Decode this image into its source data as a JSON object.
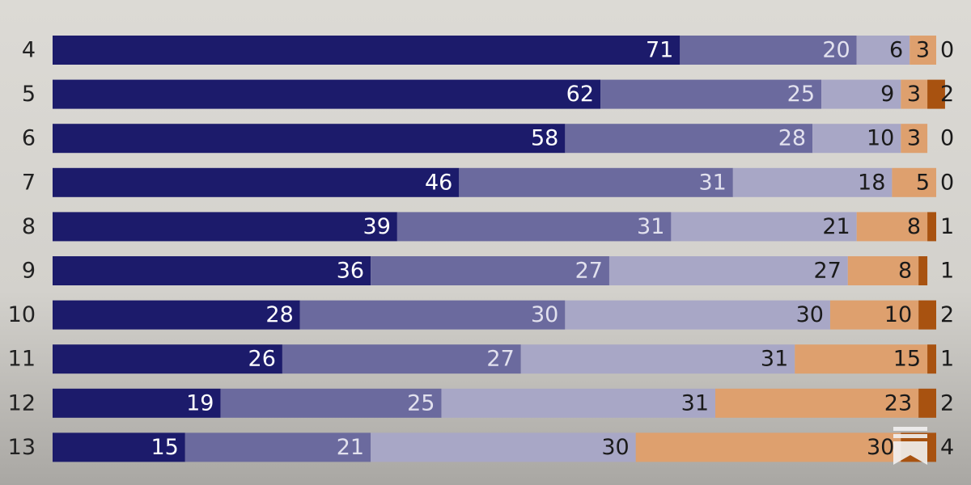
{
  "chart_data": {
    "type": "stacked-barh",
    "categories": [
      "4",
      "5",
      "6",
      "7",
      "8",
      "9",
      "10",
      "11",
      "12",
      "13"
    ],
    "series": [
      {
        "color": "#1c1b6b",
        "values": [
          71,
          62,
          58,
          46,
          39,
          36,
          28,
          26,
          19,
          15
        ]
      },
      {
        "color": "#6b6a9e",
        "values": [
          20,
          25,
          28,
          31,
          31,
          27,
          30,
          27,
          25,
          21
        ]
      },
      {
        "color": "#a8a7c6",
        "values": [
          6,
          9,
          10,
          18,
          21,
          27,
          30,
          31,
          31,
          30
        ]
      },
      {
        "color": "#dea06e",
        "values": [
          3,
          3,
          3,
          5,
          8,
          8,
          10,
          15,
          23,
          30
        ]
      },
      {
        "color": "#a85210",
        "values": [
          0,
          2,
          0,
          0,
          1,
          1,
          2,
          1,
          2,
          4
        ]
      }
    ],
    "xlim": [
      0,
      100
    ]
  }
}
